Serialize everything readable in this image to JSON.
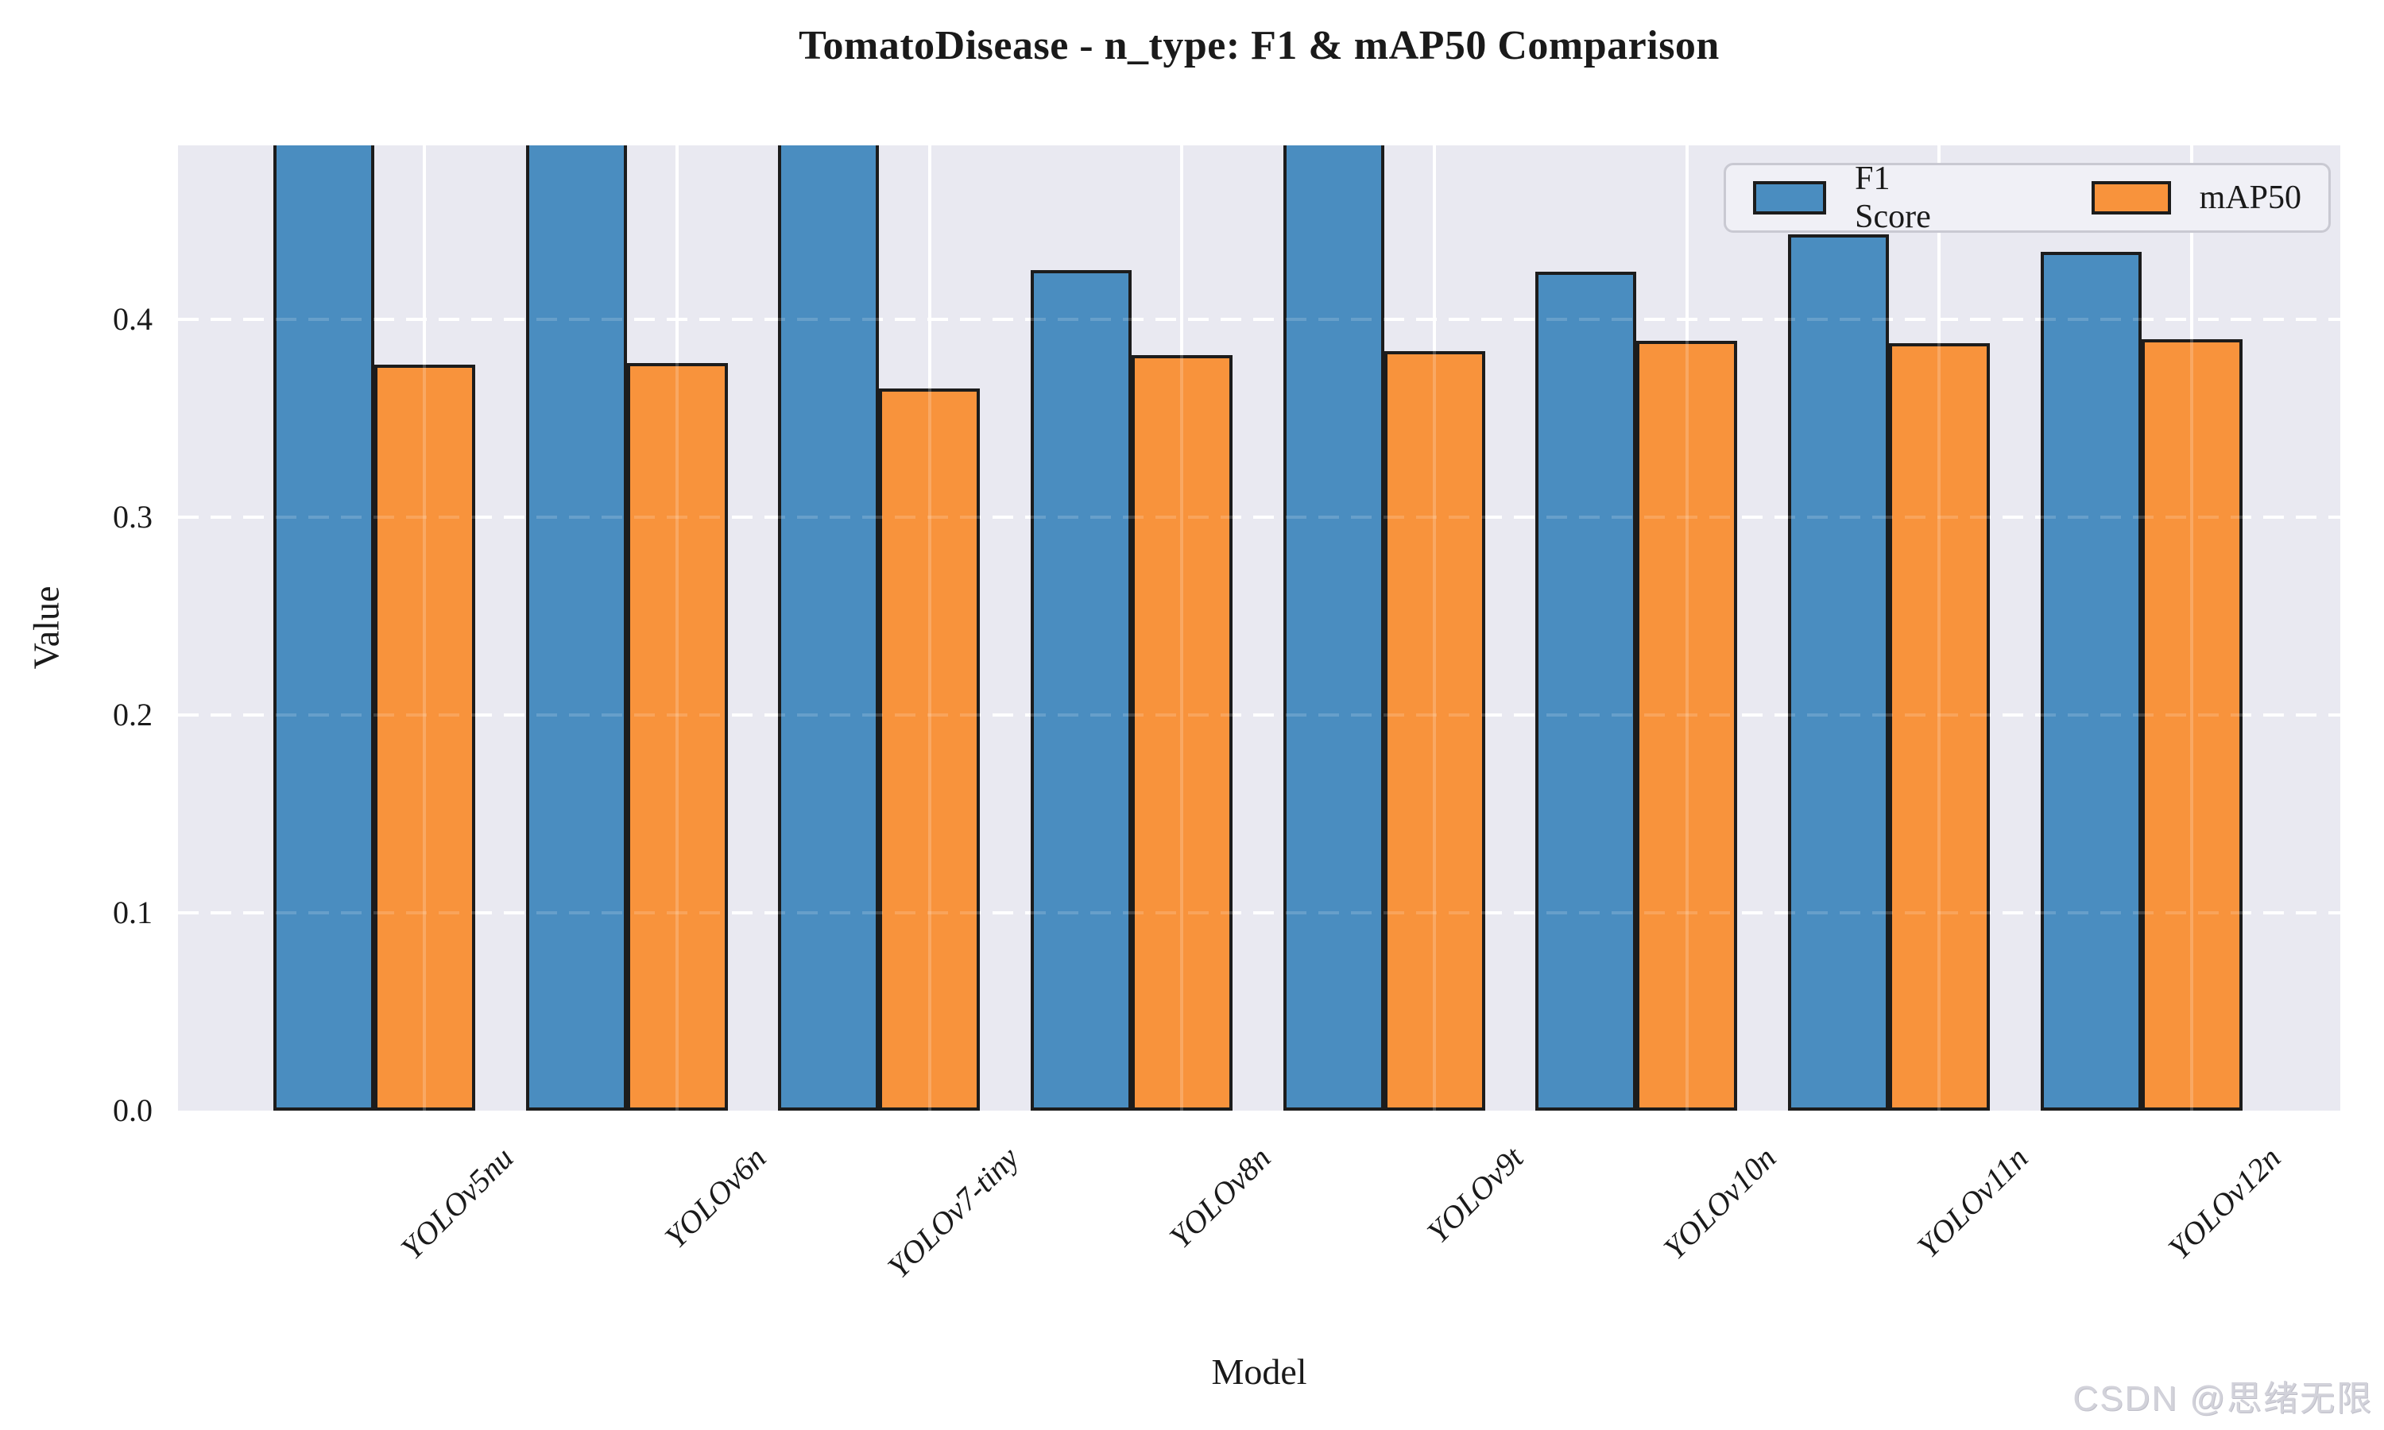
{
  "title": "TomatoDisease - n_type: F1 & mAP50 Comparison",
  "axes": {
    "xlabel": "Model",
    "ylabel": "Value",
    "ytick_labels": [
      "0.0",
      "0.1",
      "0.2",
      "0.3",
      "0.4"
    ]
  },
  "legend": {
    "items": [
      {
        "label": "F1 Score",
        "color": "#4a8dc0"
      },
      {
        "label": "mAP50",
        "color": "#f8933c"
      }
    ]
  },
  "watermark": "CSDN @思绪无限",
  "chart_data": {
    "type": "bar",
    "title": "TomatoDisease - n_type: F1 & mAP50 Comparison",
    "xlabel": "Model",
    "ylabel": "Value",
    "categories": [
      "YOLOv5nu",
      "YOLOv6n",
      "YOLOv7-tiny",
      "YOLOv8n",
      "YOLOv9t",
      "YOLOv10n",
      "YOLOv11n",
      "YOLOv12n"
    ],
    "series": [
      {
        "name": "F1 Score",
        "color": "#4a8dc0",
        "values": [
          null,
          null,
          null,
          0.425,
          null,
          0.424,
          0.443,
          0.434
        ],
        "clipped_at_top": [
          true,
          true,
          true,
          false,
          true,
          false,
          false,
          false
        ],
        "note": "bars marked clipped_at_top extend beyond the visible y-axis maximum (~0.488) and are cut off by the plot edge"
      },
      {
        "name": "mAP50",
        "color": "#f8933c",
        "values": [
          0.377,
          0.378,
          0.365,
          0.382,
          0.384,
          0.389,
          0.388,
          0.39
        ],
        "clipped_at_top": [
          false,
          false,
          false,
          false,
          false,
          false,
          false,
          false
        ]
      }
    ],
    "ylim": [
      0,
      0.488
    ],
    "yticks": [
      0.0,
      0.1,
      0.2,
      0.3,
      0.4
    ],
    "grid": true,
    "grid_style": "white solid vertical lines at group ticks, white dashed horizontal lines",
    "plot_background": "#e9e9f1",
    "bar_edge_color": "#1c1c1c",
    "legend_position": "upper right"
  }
}
